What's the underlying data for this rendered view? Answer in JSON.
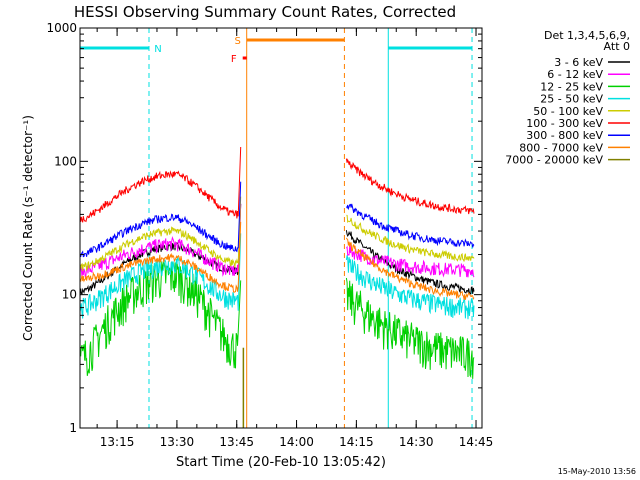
{
  "chart_data": {
    "type": "line",
    "title": "HESSI Observing Summary Count Rates, Corrected",
    "xlabel": "Start Time (20-Feb-10 13:05:42)",
    "ylabel": "Corrected Count Rate (s⁻¹ detector⁻¹)",
    "ylog": true,
    "ylim": [
      1,
      1000
    ],
    "xlim": [
      "13:05:42",
      "14:46:30"
    ],
    "x_ticks": [
      "13:15",
      "13:30",
      "13:45",
      "14:00",
      "14:15",
      "14:30",
      "14:45"
    ],
    "y_ticks": [
      "1",
      "10",
      "100",
      "1000"
    ],
    "legend_title_1": "Det 1,3,4,5,6,9,",
    "legend_title_2": "Att 0",
    "legend_position": "right",
    "footer_date": "15-May-2010 13:56",
    "gaps": [
      [
        "13:47:00",
        "14:12:30"
      ]
    ],
    "spike": {
      "time": "13:46:00",
      "top_value": 150
    },
    "series": [
      {
        "name": "3 - 6 keV",
        "color": "#000000",
        "start": 10.5,
        "peak": 23,
        "before_gap": 15,
        "after_gap": 30,
        "end": 10
      },
      {
        "name": "6 - 12 keV",
        "color": "#ff00ff",
        "start": 15,
        "peak": 24,
        "before_gap": 15,
        "after_gap": 22,
        "end": 15
      },
      {
        "name": "12 - 25 keV",
        "color": "#00d000",
        "start": 3.3,
        "peak": 14,
        "before_gap": 4,
        "after_gap": 10,
        "end": 3.3
      },
      {
        "name": "25 - 50 keV",
        "color": "#00e0e0",
        "start": 8,
        "peak": 17,
        "before_gap": 9,
        "after_gap": 17,
        "end": 7.5
      },
      {
        "name": "50 - 100 keV",
        "color": "#cccc00",
        "start": 16,
        "peak": 30,
        "before_gap": 17,
        "after_gap": 38,
        "end": 18
      },
      {
        "name": "100 - 300 keV",
        "color": "#ff0000",
        "start": 37,
        "peak": 80,
        "before_gap": 40,
        "after_gap": 100,
        "end": 40
      },
      {
        "name": "300 - 800 keV",
        "color": "#0000ff",
        "start": 20,
        "peak": 38,
        "before_gap": 22,
        "after_gap": 48,
        "end": 23
      },
      {
        "name": "800 - 7000 keV",
        "color": "#ff8000",
        "start": 13,
        "peak": 19,
        "before_gap": 11,
        "after_gap": 25,
        "end": 9
      },
      {
        "name": "7000 - 20000 keV",
        "color": "#808000",
        "start": null,
        "peak": null,
        "before_gap": null,
        "after_gap": null,
        "end": null
      }
    ],
    "flag_bars": [
      {
        "label": "N",
        "color": "#00e0e0",
        "ranges": [
          [
            "13:05:42",
            "13:23:00"
          ],
          [
            "14:23:00",
            "14:44:00"
          ]
        ]
      },
      {
        "label": "S",
        "color": "#ff8000",
        "ranges": [
          [
            "13:47:30",
            "14:12:00"
          ]
        ]
      },
      {
        "label": "F",
        "color": "#ff0000",
        "ranges": [
          [
            "13:46:30",
            "13:47:30"
          ]
        ]
      }
    ],
    "markers": [
      {
        "time": "13:23:00",
        "color": "#00e0e0",
        "style": "dashed"
      },
      {
        "time": "14:23:00",
        "color": "#00e0e0",
        "style": "solid"
      },
      {
        "time": "14:44:00",
        "color": "#00e0e0",
        "style": "dashed"
      },
      {
        "time": "13:05:42",
        "color": "#00e0e0",
        "style": "solid"
      },
      {
        "time": "13:47:30",
        "color": "#ff8000",
        "style": "solid"
      },
      {
        "time": "14:12:00",
        "color": "#ff8000",
        "style": "dashed"
      }
    ]
  }
}
